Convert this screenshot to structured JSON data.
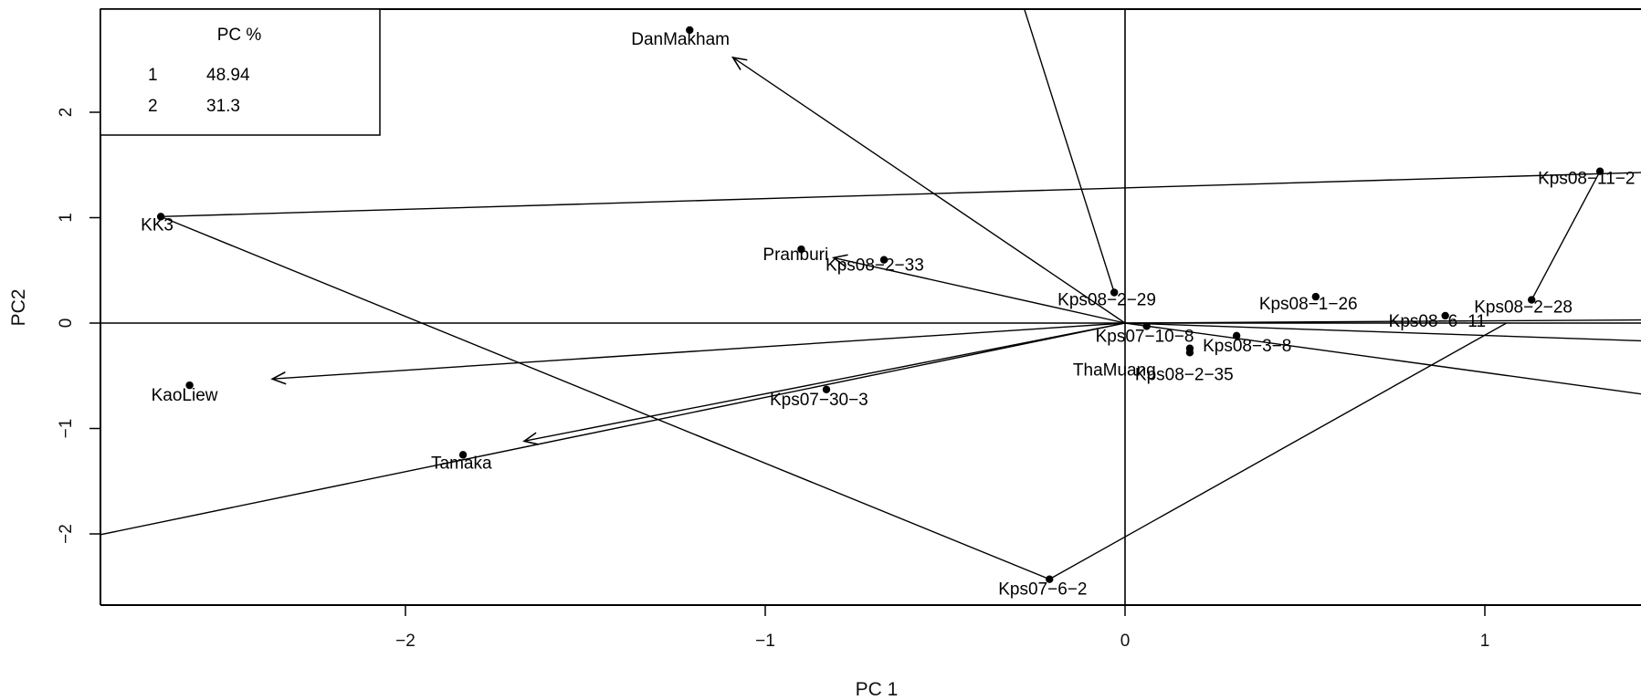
{
  "chart_data": {
    "type": "scatter",
    "title": "",
    "xlabel": "PC 1",
    "ylabel": "PC2",
    "xlim": [
      -2.88,
      1.45
    ],
    "ylim": [
      -2.68,
      2.98
    ],
    "x_ticks": [
      -2,
      -1,
      0,
      1
    ],
    "y_ticks": [
      -2,
      -1,
      0,
      1,
      2
    ],
    "x_tick_labels": [
      "−2",
      "−1",
      "0",
      "1"
    ],
    "y_tick_labels": [
      "−2",
      "−1",
      "0",
      "1",
      "2"
    ],
    "reference_lines": {
      "x": 0,
      "y": 0
    },
    "grid": false,
    "points": [
      {
        "label": "DanMakham",
        "x": -1.21,
        "y": 2.78
      },
      {
        "label": "KK3",
        "x": -2.68,
        "y": 1.01
      },
      {
        "label": "Pranburi",
        "x": -0.9,
        "y": 0.7
      },
      {
        "label": "Kps08−2−33",
        "x": -0.67,
        "y": 0.6
      },
      {
        "label": "Kps08−2−29",
        "x": -0.03,
        "y": 0.29
      },
      {
        "label": "Kps08−1−26",
        "x": 0.53,
        "y": 0.25
      },
      {
        "label": "Kps08−11−2",
        "x": 1.32,
        "y": 1.44
      },
      {
        "label": "Kps08−2−28",
        "x": 1.13,
        "y": 0.22
      },
      {
        "label": "Kps08−6−11",
        "x": 0.89,
        "y": 0.07
      },
      {
        "label": "Kps07−10−8",
        "x": 0.06,
        "y": -0.03
      },
      {
        "label": "Kps08−3−8",
        "x": 0.31,
        "y": -0.12
      },
      {
        "label": "ThaMuang",
        "x": 0.18,
        "y": -0.24
      },
      {
        "label": "Kps08−2−35",
        "x": 0.18,
        "y": -0.28
      },
      {
        "label": "KaoLiew",
        "x": -2.6,
        "y": -0.59
      },
      {
        "label": "Kps07−30−3",
        "x": -0.83,
        "y": -0.63
      },
      {
        "label": "Tamaka",
        "x": -1.84,
        "y": -1.25
      },
      {
        "label": "Kps07−6−2",
        "x": -0.21,
        "y": -2.43
      }
    ],
    "arrows": [
      {
        "from": [
          0,
          0
        ],
        "to": [
          -1.09,
          2.52
        ]
      },
      {
        "from": [
          0,
          0
        ],
        "to": [
          -0.81,
          0.62
        ]
      },
      {
        "from": [
          0,
          0
        ],
        "to": [
          -2.37,
          -0.53
        ]
      },
      {
        "from": [
          0,
          0
        ],
        "to": [
          -1.67,
          -1.12
        ]
      }
    ],
    "lines": [
      {
        "from": [
          -0.28,
          2.98
        ],
        "to": [
          -0.03,
          0.29
        ]
      },
      {
        "from": [
          -2.68,
          1.01
        ],
        "to": [
          1.45,
          1.43
        ]
      },
      {
        "from": [
          -2.68,
          1.01
        ],
        "to": [
          -0.21,
          -2.43
        ]
      },
      {
        "from": [
          -0.21,
          -2.43
        ],
        "to": [
          1.06,
          0.0
        ]
      },
      {
        "from": [
          1.13,
          0.22
        ],
        "to": [
          1.32,
          1.44
        ]
      },
      {
        "from": [
          -2.88,
          -2.03
        ],
        "to": [
          0,
          0
        ]
      },
      {
        "from": [
          0,
          0
        ],
        "to": [
          1.45,
          -0.17
        ]
      },
      {
        "from": [
          0,
          0
        ],
        "to": [
          1.45,
          -0.68
        ]
      },
      {
        "from": [
          0,
          0
        ],
        "to": [
          1.45,
          0.03
        ]
      }
    ],
    "legend": {
      "placement": "top-left",
      "header": "PC  %",
      "rows": [
        {
          "pc": "1",
          "pct": "48.94"
        },
        {
          "pc": "2",
          "pct": "31.3"
        }
      ]
    }
  }
}
